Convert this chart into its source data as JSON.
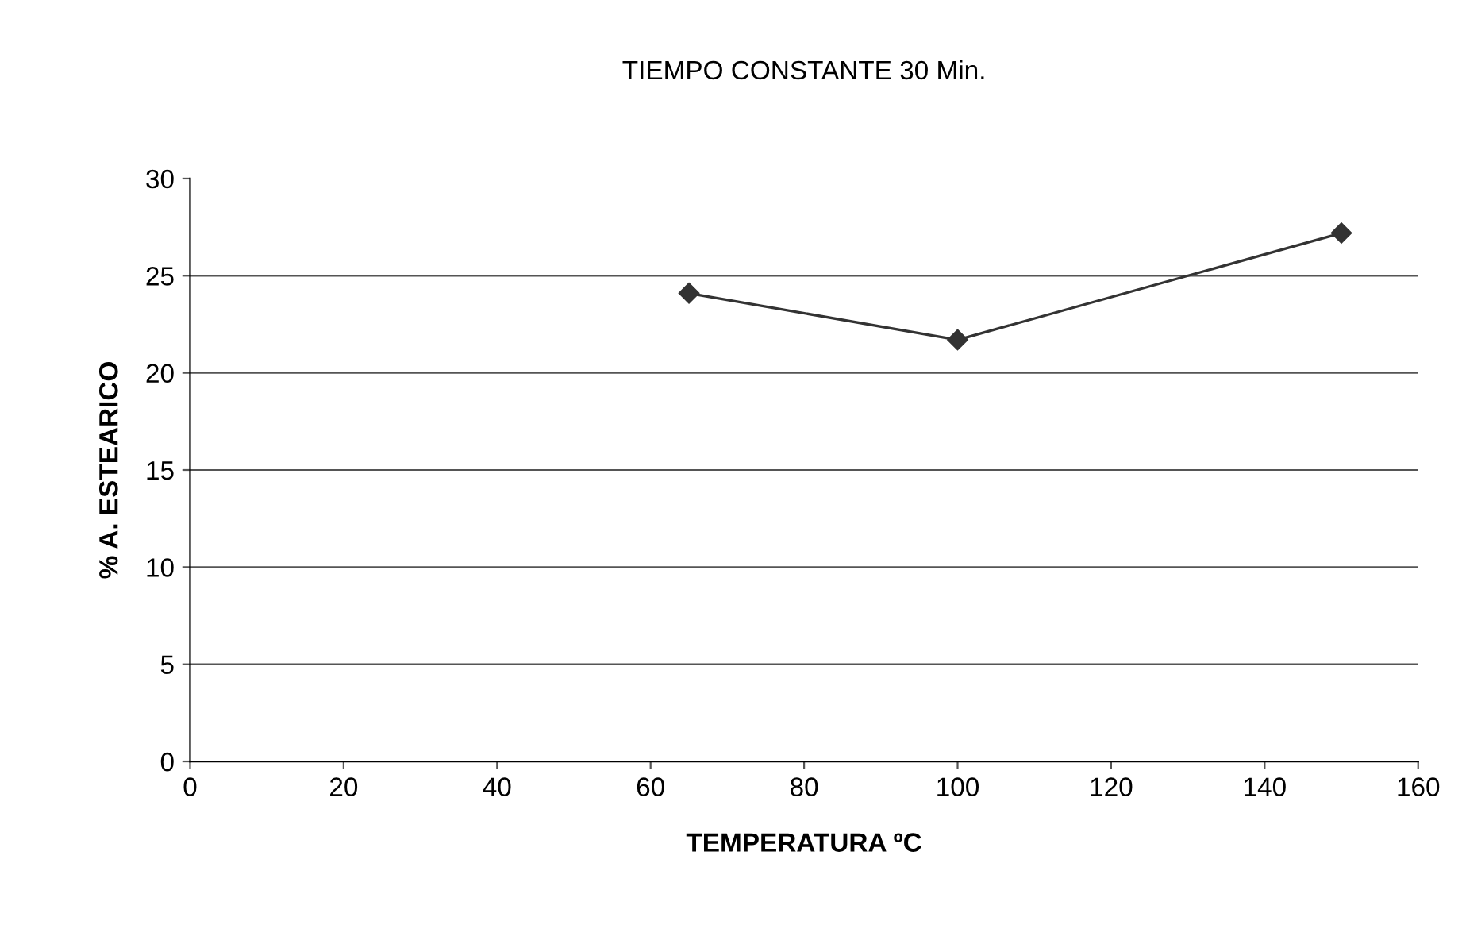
{
  "chart_data": {
    "type": "line",
    "title": "TIEMPO CONSTANTE 30 Min.",
    "xlabel": "TEMPERATURA ºC",
    "ylabel": "% A. ESTEARICO",
    "series": [
      {
        "color": "#333333",
        "x": [
          65,
          100,
          150
        ],
        "values": [
          24.1,
          21.7,
          27.2
        ]
      }
    ],
    "xlim": [
      0,
      160
    ],
    "xticks": [
      0,
      20,
      40,
      60,
      80,
      100,
      120,
      140,
      160
    ],
    "ylim": [
      0,
      30
    ],
    "yticks": [
      0,
      5,
      10,
      15,
      20,
      25,
      30
    ],
    "grid": "y",
    "marker": "diamond",
    "line_style": "solid"
  }
}
